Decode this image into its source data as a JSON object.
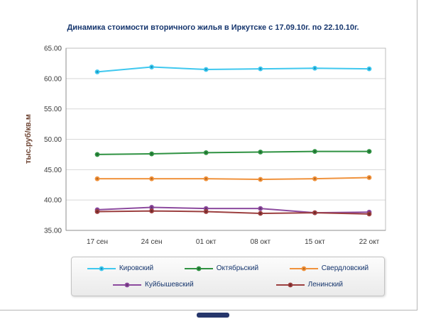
{
  "chart_data": {
    "type": "line",
    "title": "Динамика стоимости вторичного жилья в Иркутске с 17.09.10г. по 22.10.10г.",
    "ylabel": "тыс.руб/кв.м",
    "categories": [
      "17 сен",
      "24 сен",
      "01 окт",
      "08 окт",
      "15 окт",
      "22 окт"
    ],
    "ylim": [
      35,
      65
    ],
    "ytick_step": 5,
    "ytick_labels": [
      "65.00",
      "60.00",
      "55.00",
      "50.00",
      "45.00",
      "40.00",
      "35.00"
    ],
    "grid": true,
    "legend_position": "bottom",
    "series": [
      {
        "name": "Кировский",
        "color": "#3fc8ef",
        "marker_color": "#1795bf",
        "values": [
          61.1,
          61.9,
          61.5,
          61.6,
          61.7,
          61.6
        ]
      },
      {
        "name": "Октябрьский",
        "color": "#2f9242",
        "marker_color": "#1f6b2f",
        "values": [
          47.5,
          47.6,
          47.8,
          47.9,
          48.0,
          48.0
        ]
      },
      {
        "name": "Свердловский",
        "color": "#f0923c",
        "marker_color": "#c06a1d",
        "values": [
          43.5,
          43.5,
          43.5,
          43.4,
          43.5,
          43.7
        ]
      },
      {
        "name": "Куйбышевский",
        "color": "#8c4a9e",
        "marker_color": "#63306f",
        "values": [
          38.4,
          38.8,
          38.6,
          38.6,
          37.9,
          38.0
        ]
      },
      {
        "name": "Ленинский",
        "color": "#9c3f3f",
        "marker_color": "#6d2727",
        "values": [
          38.1,
          38.2,
          38.1,
          37.8,
          37.9,
          37.7
        ]
      }
    ],
    "legend_rows": [
      [
        0,
        1,
        2
      ],
      [
        3,
        4
      ]
    ]
  }
}
